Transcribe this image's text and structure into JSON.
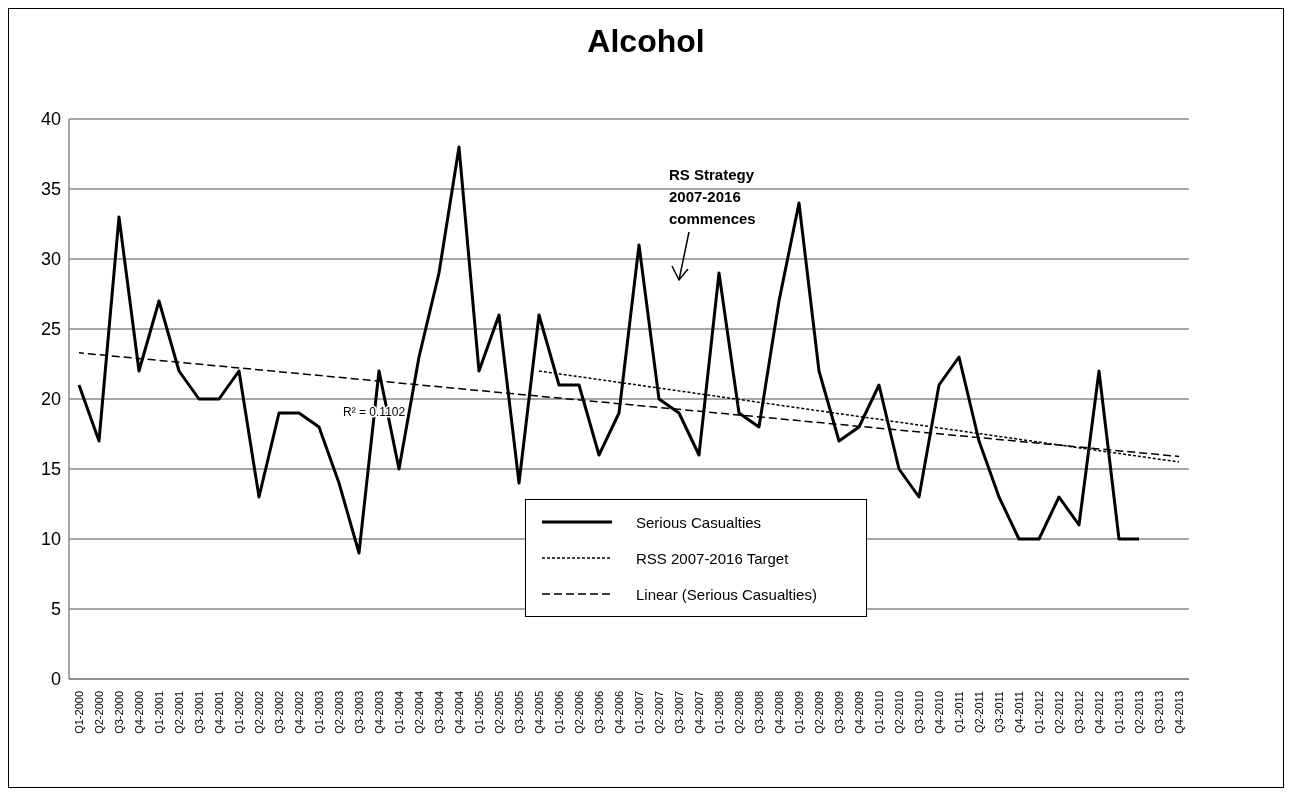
{
  "chart_data": {
    "type": "line",
    "title": "Alcohol",
    "categories": [
      "Q1-2000",
      "Q2-2000",
      "Q3-2000",
      "Q4-2000",
      "Q1-2001",
      "Q2-2001",
      "Q3-2001",
      "Q4-2001",
      "Q1-2002",
      "Q2-2002",
      "Q3-2002",
      "Q4-2002",
      "Q1-2003",
      "Q2-2003",
      "Q3-2003",
      "Q4-2003",
      "Q1-2004",
      "Q2-2004",
      "Q3-2004",
      "Q4-2004",
      "Q1-2005",
      "Q2-2005",
      "Q3-2005",
      "Q4-2005",
      "Q1-2006",
      "Q2-2006",
      "Q3-2006",
      "Q4-2006",
      "Q1-2007",
      "Q2-2007",
      "Q3-2007",
      "Q4-2007",
      "Q1-2008",
      "Q2-2008",
      "Q3-2008",
      "Q4-2008",
      "Q1-2009",
      "Q2-2009",
      "Q3-2009",
      "Q4-2009",
      "Q1-2010",
      "Q2-2010",
      "Q3-2010",
      "Q4-2010",
      "Q1-2011",
      "Q2-2011",
      "Q3-2011",
      "Q4-2011",
      "Q1-2012",
      "Q2-2012",
      "Q3-2012",
      "Q4-2012",
      "Q1-2013",
      "Q2-2013",
      "Q3-2013",
      "Q4-2013"
    ],
    "series": [
      {
        "name": "Serious Casualties",
        "color": "#000000",
        "line_style": "solid",
        "values": [
          21,
          17,
          33,
          22,
          27,
          22,
          20,
          20,
          22,
          13,
          19,
          19,
          18,
          14,
          9,
          22,
          15,
          23,
          29,
          38,
          22,
          26,
          14,
          26,
          21,
          21,
          16,
          19,
          31,
          20,
          19,
          16,
          29,
          19,
          18,
          27,
          34,
          22,
          17,
          18,
          21,
          15,
          13,
          21,
          23,
          17,
          13,
          10,
          10,
          13,
          11,
          22,
          10,
          10,
          null,
          null
        ]
      },
      {
        "name": "RSS 2007-2016 Target",
        "type": "line",
        "color": "#000000",
        "line_style": "dotted",
        "x": [
          "Q4-2005",
          "Q4-2013"
        ],
        "values": [
          22,
          15.5
        ]
      },
      {
        "name": "Linear (Serious Casualties)",
        "type": "line",
        "color": "#000000",
        "line_style": "dashed",
        "x": [
          "Q1-2000",
          "Q4-2013"
        ],
        "values": [
          23.3,
          15.9
        ]
      }
    ],
    "ylim": [
      0,
      40
    ],
    "yticks": [
      0,
      5,
      10,
      15,
      20,
      25,
      30,
      35,
      40
    ],
    "grid": "y",
    "legend": "bottom",
    "marker": "none",
    "annotations": [
      "R² = 0.1102",
      "RS Strategy\n2007-2016\ncommences"
    ]
  }
}
